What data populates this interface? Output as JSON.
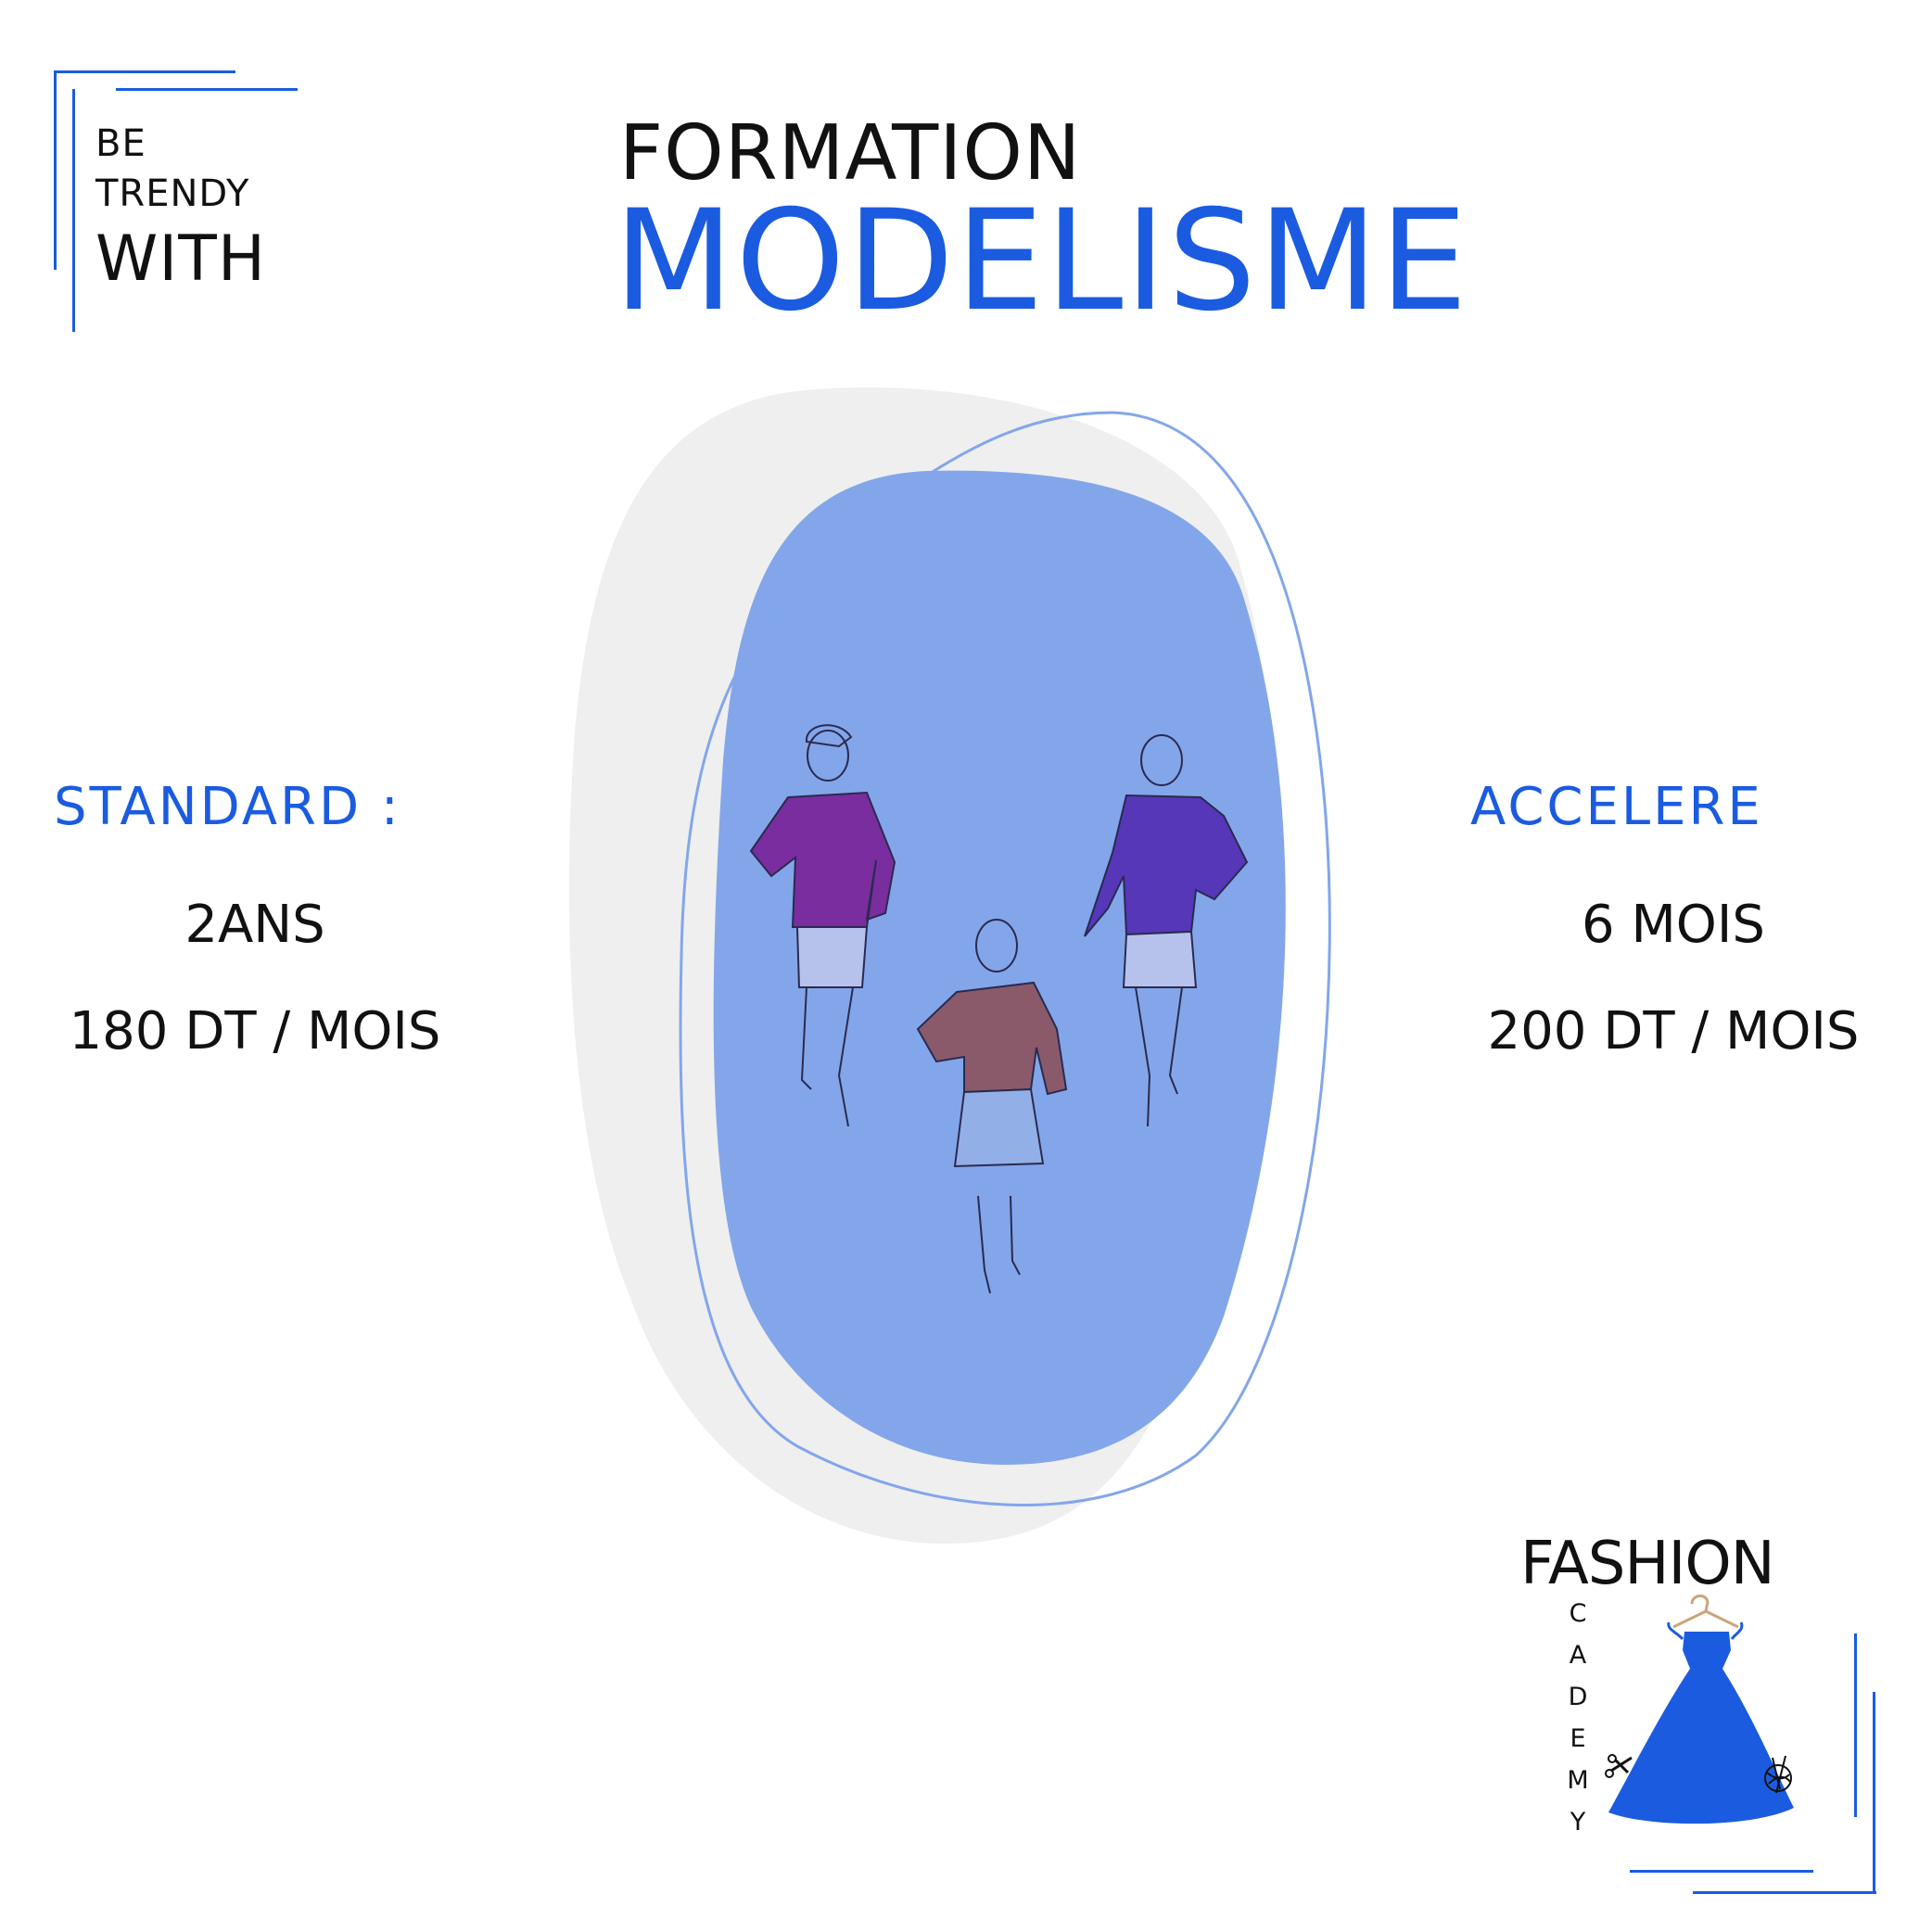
{
  "tagline": {
    "line1": "BE",
    "line2": "TRENDY",
    "line3": "WITH"
  },
  "title": {
    "top": "FORMATION",
    "main": "MODELISME"
  },
  "standard": {
    "label": "STANDARD :",
    "duration": "2ANS",
    "price": "180 DT / MOIS"
  },
  "accelere": {
    "label": "ACCELERE",
    "duration": "6 MOIS",
    "price": "200 DT / MOIS"
  },
  "logo": {
    "word": "FASHION",
    "letters": [
      "C",
      "A",
      "D",
      "E",
      "M",
      "Y"
    ]
  },
  "colors": {
    "accent": "#1a5be0",
    "blob": "#83a6ea",
    "grey_blob": "#efefef",
    "text": "#111111"
  },
  "illustration": {
    "figures": [
      "purple-jacket-figure",
      "brown-jacket-figure",
      "violet-jacket-figure"
    ]
  }
}
